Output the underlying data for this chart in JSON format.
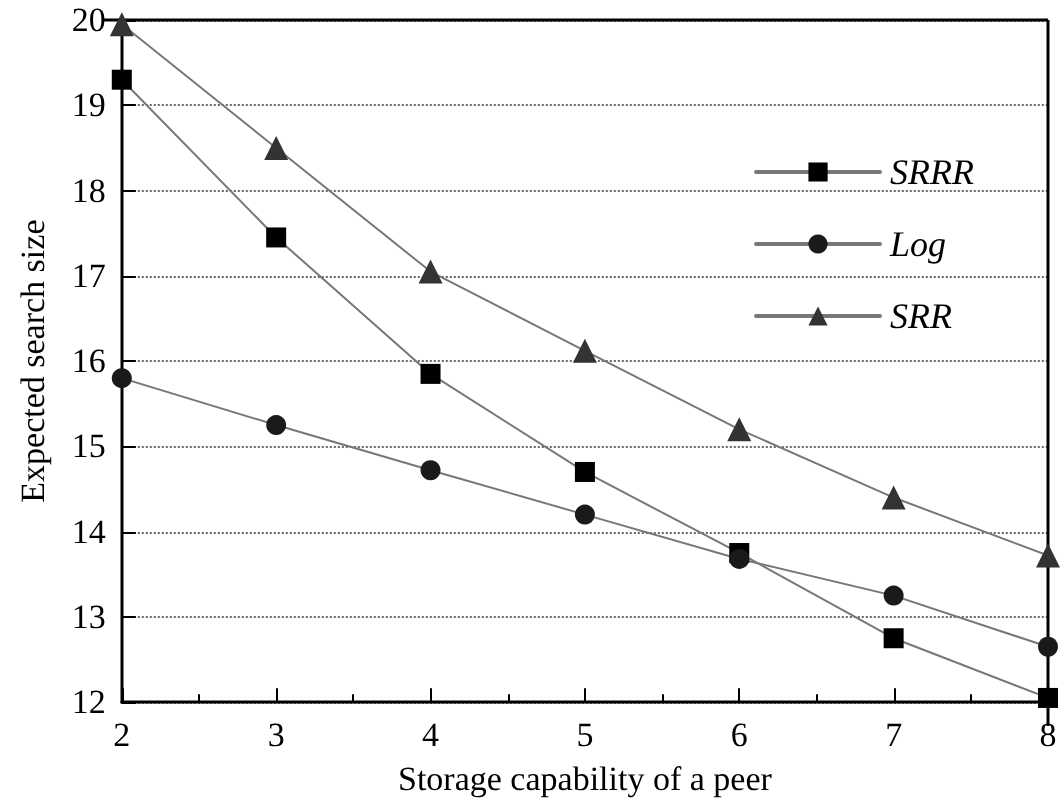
{
  "chart_data": {
    "type": "line",
    "xlabel": "Storage capability of a peer",
    "ylabel": "Expected search size",
    "x": [
      2,
      3,
      4,
      5,
      6,
      7,
      8
    ],
    "series": [
      {
        "name": "SRRR",
        "color": "#000000",
        "marker": "square",
        "values": [
          19.3,
          17.45,
          15.85,
          14.7,
          13.75,
          12.75,
          12.05
        ]
      },
      {
        "name": "Log",
        "color": "#1a1a1a",
        "marker": "circle",
        "values": [
          15.8,
          15.25,
          14.72,
          14.2,
          13.68,
          13.25,
          12.65
        ]
      },
      {
        "name": "SRR",
        "color": "#333333",
        "marker": "triangle",
        "values": [
          19.95,
          18.5,
          17.05,
          16.12,
          15.2,
          14.4,
          13.72
        ]
      }
    ],
    "xlim": [
      2,
      8
    ],
    "xticks": [
      2,
      3,
      4,
      5,
      6,
      7,
      8
    ],
    "ylim": [
      12,
      20
    ],
    "yticks": [
      12,
      13,
      14,
      15,
      16,
      17,
      18,
      19,
      20
    ],
    "grid": "y",
    "legend": "right",
    "line_style": "solid"
  }
}
